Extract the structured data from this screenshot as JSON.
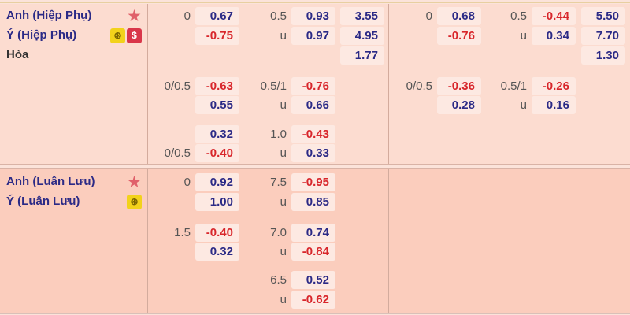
{
  "colors": {
    "home_odds": "#2b2a86",
    "negative_odds": "#d8262b",
    "section1_bg": "#fcdcd0",
    "section2_bg": "#fbcdbd"
  },
  "sections": [
    {
      "teams": [
        {
          "name": "Anh (Hiệp Phụ)",
          "icons": [
            "star-icon"
          ]
        },
        {
          "name": "Ý (Hiệp Phụ)",
          "icons": [
            "coin-icon",
            "dollar-icon"
          ]
        },
        {
          "name": "Hòa",
          "icons": []
        }
      ],
      "blocks": [
        {
          "handicap": [
            {
              "home_line": "0",
              "home": "0.67",
              "away_line": "",
              "away": "-0.75"
            },
            {
              "home_line": "0/0.5",
              "home": "-0.63",
              "away_line": "",
              "away": "0.55"
            },
            {
              "home_line": "",
              "home": "0.32",
              "away_line": "0/0.5",
              "away": "-0.40"
            }
          ],
          "over_under": [
            {
              "line": "0.5",
              "over": "0.93",
              "under_label": "u",
              "under": "0.97"
            },
            {
              "line": "0.5/1",
              "over": "-0.76",
              "under_label": "u",
              "under": "0.66"
            },
            {
              "line": "1.0",
              "over": "-0.43",
              "under_label": "u",
              "under": "0.33"
            }
          ],
          "x12": [
            "3.55",
            "4.95",
            "1.77"
          ]
        },
        {
          "handicap": [
            {
              "home_line": "0",
              "home": "0.68",
              "away_line": "",
              "away": "-0.76"
            },
            {
              "home_line": "0/0.5",
              "home": "-0.36",
              "away_line": "",
              "away": "0.28"
            }
          ],
          "over_under": [
            {
              "line": "0.5",
              "over": "-0.44",
              "under_label": "u",
              "under": "0.34"
            },
            {
              "line": "0.5/1",
              "over": "-0.26",
              "under_label": "u",
              "under": "0.16"
            }
          ],
          "x12": [
            "5.50",
            "7.70",
            "1.30"
          ]
        }
      ]
    },
    {
      "teams": [
        {
          "name": "Anh (Luân Lưu)",
          "icons": [
            "star-icon"
          ]
        },
        {
          "name": "Ý (Luân Lưu)",
          "icons": [
            "coin-icon"
          ]
        }
      ],
      "blocks": [
        {
          "handicap": [
            {
              "home_line": "0",
              "home": "0.92",
              "away_line": "",
              "away": "1.00"
            },
            {
              "home_line": "1.5",
              "home": "-0.40",
              "away_line": "",
              "away": "0.32"
            }
          ],
          "over_under": [
            {
              "line": "7.5",
              "over": "-0.95",
              "under_label": "u",
              "under": "0.85"
            },
            {
              "line": "7.0",
              "over": "0.74",
              "under_label": "u",
              "under": "-0.84"
            },
            {
              "line": "6.5",
              "over": "0.52",
              "under_label": "u",
              "under": "-0.62"
            }
          ],
          "x12": []
        }
      ]
    }
  ]
}
